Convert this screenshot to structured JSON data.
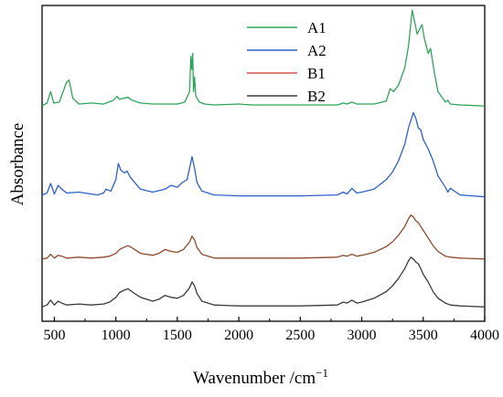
{
  "chart_data": {
    "type": "line",
    "title": "",
    "xlabel": "Wavenumber /cm",
    "xlabel_superscript": "−1",
    "ylabel": "Absorbance",
    "xlim": [
      400,
      4000
    ],
    "x_reversed": false,
    "y_ticks_shown": false,
    "grid": false,
    "legend_position": "top-center",
    "x_ticks": [
      500,
      1000,
      1500,
      2000,
      2500,
      3000,
      3500,
      4000
    ],
    "series": [
      {
        "name": "A1",
        "color": "#2ea45a",
        "x": [
          400,
          440,
          470,
          495,
          540,
          600,
          620,
          650,
          700,
          800,
          900,
          980,
          1010,
          1030,
          1060,
          1100,
          1130,
          1200,
          1300,
          1400,
          1500,
          1560,
          1600,
          1610,
          1618,
          1625,
          1632,
          1640,
          1650,
          1680,
          1720,
          1800,
          2000,
          2100,
          2500,
          2800,
          2850,
          2880,
          2920,
          2960,
          3100,
          3200,
          3230,
          3260,
          3300,
          3350,
          3380,
          3410,
          3430,
          3450,
          3470,
          3490,
          3510,
          3540,
          3560,
          3590,
          3620,
          3680,
          3700,
          3720,
          3800,
          4000
        ],
        "y": [
          0.0,
          0.03,
          0.15,
          0.03,
          0.04,
          0.25,
          0.27,
          0.08,
          0.02,
          0.03,
          0.02,
          0.06,
          0.1,
          0.07,
          0.08,
          0.09,
          0.06,
          0.03,
          0.02,
          0.02,
          0.02,
          0.04,
          0.15,
          0.52,
          0.38,
          0.55,
          0.15,
          0.3,
          0.1,
          0.04,
          0.02,
          0.01,
          0.02,
          0.01,
          0.01,
          0.01,
          0.03,
          0.02,
          0.04,
          0.02,
          0.02,
          0.05,
          0.18,
          0.15,
          0.22,
          0.4,
          0.62,
          1.0,
          0.88,
          0.75,
          0.8,
          0.85,
          0.7,
          0.55,
          0.6,
          0.35,
          0.15,
          0.04,
          0.06,
          0.02,
          0.01,
          0.0
        ],
        "offset": 2.1
      },
      {
        "name": "A2",
        "color": "#2e60c8",
        "x": [
          400,
          440,
          470,
          500,
          530,
          560,
          600,
          700,
          800,
          850,
          900,
          920,
          960,
          1000,
          1020,
          1040,
          1070,
          1090,
          1120,
          1200,
          1300,
          1400,
          1450,
          1500,
          1540,
          1580,
          1600,
          1620,
          1640,
          1660,
          1700,
          1800,
          2000,
          2200,
          2500,
          2800,
          2850,
          2880,
          2920,
          2960,
          3000,
          3100,
          3200,
          3250,
          3300,
          3350,
          3380,
          3400,
          3420,
          3440,
          3460,
          3480,
          3500,
          3540,
          3580,
          3620,
          3680,
          3700,
          3720,
          3800,
          4000
        ],
        "y": [
          0.02,
          0.04,
          0.14,
          0.03,
          0.12,
          0.08,
          0.04,
          0.05,
          0.03,
          0.02,
          0.04,
          0.08,
          0.06,
          0.18,
          0.35,
          0.28,
          0.25,
          0.27,
          0.2,
          0.08,
          0.05,
          0.08,
          0.12,
          0.1,
          0.15,
          0.18,
          0.3,
          0.42,
          0.3,
          0.15,
          0.06,
          0.02,
          0.01,
          0.01,
          0.01,
          0.02,
          0.05,
          0.03,
          0.09,
          0.04,
          0.05,
          0.08,
          0.18,
          0.26,
          0.38,
          0.55,
          0.72,
          0.8,
          0.88,
          0.82,
          0.72,
          0.7,
          0.6,
          0.5,
          0.38,
          0.22,
          0.1,
          0.05,
          0.09,
          0.02,
          0.0
        ],
        "offset": 1.15
      },
      {
        "name": "B1",
        "color": "#8c4a2a",
        "x": [
          400,
          440,
          470,
          500,
          530,
          560,
          600,
          700,
          800,
          900,
          950,
          1000,
          1030,
          1060,
          1100,
          1130,
          1200,
          1300,
          1350,
          1400,
          1450,
          1500,
          1550,
          1600,
          1620,
          1640,
          1660,
          1700,
          1800,
          2000,
          2500,
          2800,
          2850,
          2880,
          2920,
          2960,
          3000,
          3100,
          3200,
          3250,
          3300,
          3350,
          3380,
          3400,
          3420,
          3440,
          3460,
          3480,
          3500,
          3540,
          3580,
          3620,
          3680,
          3720,
          3800,
          4000
        ],
        "y": [
          0.0,
          0.01,
          0.05,
          0.01,
          0.04,
          0.03,
          0.01,
          0.02,
          0.01,
          0.02,
          0.03,
          0.06,
          0.1,
          0.12,
          0.14,
          0.12,
          0.06,
          0.04,
          0.06,
          0.1,
          0.08,
          0.07,
          0.1,
          0.18,
          0.24,
          0.2,
          0.12,
          0.05,
          0.01,
          0.01,
          0.01,
          0.02,
          0.04,
          0.03,
          0.05,
          0.03,
          0.04,
          0.07,
          0.13,
          0.18,
          0.25,
          0.34,
          0.42,
          0.46,
          0.44,
          0.4,
          0.38,
          0.34,
          0.3,
          0.22,
          0.14,
          0.08,
          0.03,
          0.02,
          0.01,
          0.0
        ],
        "offset": 0.5
      },
      {
        "name": "B2",
        "color": "#3a3a3a",
        "x": [
          400,
          440,
          470,
          500,
          530,
          560,
          600,
          700,
          800,
          900,
          950,
          1000,
          1030,
          1060,
          1100,
          1130,
          1200,
          1300,
          1350,
          1400,
          1450,
          1500,
          1550,
          1600,
          1620,
          1640,
          1660,
          1700,
          1800,
          2000,
          2500,
          2800,
          2850,
          2880,
          2920,
          2960,
          3000,
          3100,
          3200,
          3250,
          3300,
          3350,
          3380,
          3400,
          3420,
          3440,
          3460,
          3480,
          3500,
          3540,
          3580,
          3620,
          3680,
          3720,
          3800,
          4000
        ],
        "y": [
          0.0,
          0.02,
          0.07,
          0.02,
          0.06,
          0.04,
          0.02,
          0.03,
          0.02,
          0.03,
          0.05,
          0.1,
          0.15,
          0.17,
          0.19,
          0.16,
          0.1,
          0.06,
          0.08,
          0.12,
          0.1,
          0.09,
          0.12,
          0.2,
          0.26,
          0.22,
          0.14,
          0.06,
          0.02,
          0.01,
          0.01,
          0.02,
          0.05,
          0.04,
          0.07,
          0.04,
          0.05,
          0.09,
          0.16,
          0.22,
          0.3,
          0.4,
          0.48,
          0.52,
          0.5,
          0.47,
          0.45,
          0.4,
          0.34,
          0.26,
          0.16,
          0.09,
          0.04,
          0.02,
          0.01,
          0.0
        ],
        "offset": 0.0
      }
    ]
  }
}
